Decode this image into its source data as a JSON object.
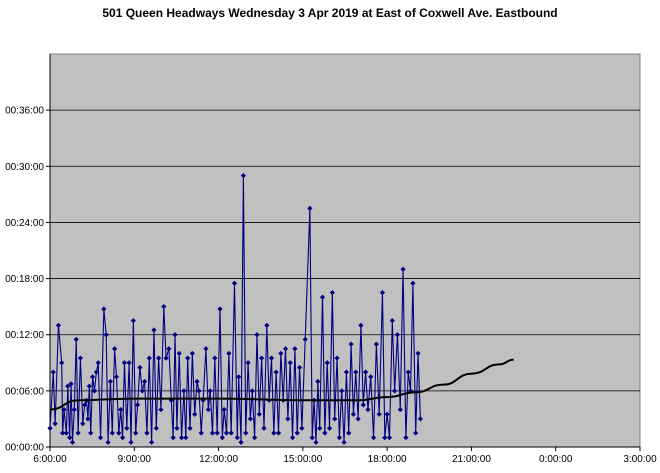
{
  "chart_data": {
    "type": "line",
    "title": "501 Queen Headways Wednesday 3 Apr 2019 at East of Coxwell Ave. Eastbound",
    "xlabel": "",
    "ylabel": "",
    "xlim": [
      "6:00:00",
      "3:00:00"
    ],
    "ylim": [
      "00:00:00",
      "00:42:00"
    ],
    "x_ticks": [
      "6:00:00",
      "9:00:00",
      "12:00:00",
      "15:00:00",
      "18:00:00",
      "21:00:00",
      "0:00:00",
      "3:00:00"
    ],
    "y_ticks": [
      "00:00:00",
      "00:06:00",
      "00:12:00",
      "00:18:00",
      "00:24:00",
      "00:30:00",
      "00:36:00"
    ],
    "grid": "horizontal",
    "legend": "none",
    "colors": {
      "plot_background": "#c0c0c0",
      "series": "#000080",
      "trend": "#000000"
    },
    "series": [
      {
        "values": [
          [
            "6:00",
            "0:02:00"
          ],
          [
            "6:07",
            "0:08:00"
          ],
          [
            "6:11",
            "0:02:30"
          ],
          [
            "6:18",
            "0:13:00"
          ],
          [
            "6:25",
            "0:09:00"
          ],
          [
            "6:27",
            "0:01:30"
          ],
          [
            "6:30",
            "0:04:00"
          ],
          [
            "6:35",
            "0:01:30"
          ],
          [
            "6:38",
            "0:06:30"
          ],
          [
            "6:42",
            "0:01:00"
          ],
          [
            "6:45",
            "0:06:45"
          ],
          [
            "6:48",
            "0:00:30"
          ],
          [
            "6:52",
            "0:04:00"
          ],
          [
            "6:56",
            "0:11:30"
          ],
          [
            "7:00",
            "0:01:30"
          ],
          [
            "7:05",
            "0:09:30"
          ],
          [
            "7:10",
            "0:02:30"
          ],
          [
            "7:14",
            "0:04:30"
          ],
          [
            "7:18",
            "0:05:00"
          ],
          [
            "7:21",
            "0:03:00"
          ],
          [
            "7:24",
            "0:06:30"
          ],
          [
            "7:27",
            "0:01:30"
          ],
          [
            "7:31",
            "0:07:30"
          ],
          [
            "7:35",
            "0:06:00"
          ],
          [
            "7:39",
            "0:08:00"
          ],
          [
            "7:43",
            "0:09:00"
          ],
          [
            "7:48",
            "0:01:00"
          ],
          [
            "7:55",
            "0:14:45"
          ],
          [
            "8:00",
            "0:12:00"
          ],
          [
            "8:04",
            "0:00:30"
          ],
          [
            "8:09",
            "0:07:00"
          ],
          [
            "8:13",
            "0:01:30"
          ],
          [
            "8:18",
            "0:10:30"
          ],
          [
            "8:22",
            "0:07:30"
          ],
          [
            "8:27",
            "0:01:30"
          ],
          [
            "8:31",
            "0:04:00"
          ],
          [
            "8:35",
            "0:01:00"
          ],
          [
            "8:39",
            "0:09:00"
          ],
          [
            "8:44",
            "0:02:00"
          ],
          [
            "8:49",
            "0:09:00"
          ],
          [
            "8:53",
            "0:00:30"
          ],
          [
            "8:58",
            "0:13:30"
          ],
          [
            "9:03",
            "0:01:30"
          ],
          [
            "9:07",
            "0:04:30"
          ],
          [
            "9:12",
            "0:08:30"
          ],
          [
            "9:17",
            "0:06:00"
          ],
          [
            "9:22",
            "0:07:00"
          ],
          [
            "9:27",
            "0:01:30"
          ],
          [
            "9:32",
            "0:09:30"
          ],
          [
            "9:37",
            "0:00:30"
          ],
          [
            "9:42",
            "0:12:30"
          ],
          [
            "9:47",
            "0:02:00"
          ],
          [
            "9:52",
            "0:09:30"
          ],
          [
            "9:57",
            "0:04:00"
          ],
          [
            "10:03",
            "0:15:00"
          ],
          [
            "10:08",
            "0:09:30"
          ],
          [
            "10:14",
            "0:10:30"
          ],
          [
            "10:19",
            "0:05:00"
          ],
          [
            "10:23",
            "0:01:00"
          ],
          [
            "10:27",
            "0:12:00"
          ],
          [
            "10:31",
            "0:02:00"
          ],
          [
            "10:36",
            "0:10:00"
          ],
          [
            "10:41",
            "0:01:00"
          ],
          [
            "10:46",
            "0:06:00"
          ],
          [
            "10:50",
            "0:01:00"
          ],
          [
            "10:54",
            "0:09:30"
          ],
          [
            "10:59",
            "0:02:00"
          ],
          [
            "11:04",
            "0:10:00"
          ],
          [
            "11:09",
            "0:03:30"
          ],
          [
            "11:14",
            "0:07:00"
          ],
          [
            "11:18",
            "0:06:00"
          ],
          [
            "11:23",
            "0:01:30"
          ],
          [
            "11:27",
            "0:05:00"
          ],
          [
            "11:33",
            "0:10:30"
          ],
          [
            "11:38",
            "0:04:00"
          ],
          [
            "11:42",
            "0:06:00"
          ],
          [
            "11:47",
            "0:01:30"
          ],
          [
            "11:52",
            "0:09:30"
          ],
          [
            "11:57",
            "0:01:30"
          ],
          [
            "12:03",
            "0:14:45"
          ],
          [
            "12:08",
            "0:01:00"
          ],
          [
            "12:12",
            "0:04:00"
          ],
          [
            "12:17",
            "0:01:30"
          ],
          [
            "12:22",
            "0:10:00"
          ],
          [
            "12:27",
            "0:01:30"
          ],
          [
            "12:34",
            "0:17:30"
          ],
          [
            "12:40",
            "0:01:00"
          ],
          [
            "12:43",
            "0:07:30"
          ],
          [
            "12:48",
            "0:00:30"
          ],
          [
            "12:53",
            "0:29:00"
          ],
          [
            "12:58",
            "0:01:30"
          ],
          [
            "13:03",
            "0:09:00"
          ],
          [
            "13:08",
            "0:03:00"
          ],
          [
            "13:12",
            "0:06:00"
          ],
          [
            "13:17",
            "0:01:00"
          ],
          [
            "13:22",
            "0:12:00"
          ],
          [
            "13:27",
            "0:03:30"
          ],
          [
            "13:32",
            "0:09:30"
          ],
          [
            "13:37",
            "0:02:00"
          ],
          [
            "13:43",
            "0:13:00"
          ],
          [
            "13:48",
            "0:05:00"
          ],
          [
            "13:53",
            "0:09:30"
          ],
          [
            "13:58",
            "0:01:30"
          ],
          [
            "14:03",
            "0:08:00"
          ],
          [
            "14:08",
            "0:01:30"
          ],
          [
            "14:13",
            "0:10:00"
          ],
          [
            "14:18",
            "0:05:00"
          ],
          [
            "14:23",
            "0:10:30"
          ],
          [
            "14:28",
            "0:03:00"
          ],
          [
            "14:33",
            "0:09:00"
          ],
          [
            "14:38",
            "0:01:00"
          ],
          [
            "14:43",
            "0:10:30"
          ],
          [
            "14:48",
            "0:01:30"
          ],
          [
            "14:53",
            "0:08:30"
          ],
          [
            "14:58",
            "0:02:00"
          ],
          [
            "15:05",
            "0:11:30"
          ],
          [
            "15:15",
            "0:25:30"
          ],
          [
            "15:20",
            "0:01:00"
          ],
          [
            "15:24",
            "0:05:00"
          ],
          [
            "15:28",
            "0:00:30"
          ],
          [
            "15:32",
            "0:07:00"
          ],
          [
            "15:36",
            "0:02:00"
          ],
          [
            "15:42",
            "0:16:00"
          ],
          [
            "15:47",
            "0:01:30"
          ],
          [
            "15:52",
            "0:09:00"
          ],
          [
            "15:57",
            "0:02:00"
          ],
          [
            "16:03",
            "0:16:30"
          ],
          [
            "16:08",
            "0:03:00"
          ],
          [
            "16:13",
            "0:09:30"
          ],
          [
            "16:18",
            "0:01:00"
          ],
          [
            "16:23",
            "0:06:00"
          ],
          [
            "16:28",
            "0:00:30"
          ],
          [
            "16:33",
            "0:08:00"
          ],
          [
            "16:38",
            "0:01:30"
          ],
          [
            "16:43",
            "0:11:00"
          ],
          [
            "16:48",
            "0:03:30"
          ],
          [
            "16:53",
            "0:08:00"
          ],
          [
            "16:58",
            "0:03:00"
          ],
          [
            "17:04",
            "0:13:00"
          ],
          [
            "17:09",
            "0:04:30"
          ],
          [
            "17:14",
            "0:08:00"
          ],
          [
            "17:19",
            "0:04:00"
          ],
          [
            "17:25",
            "0:07:30"
          ],
          [
            "17:31",
            "0:01:00"
          ],
          [
            "17:37",
            "0:11:00"
          ],
          [
            "17:43",
            "0:03:30"
          ],
          [
            "17:50",
            "0:16:30"
          ],
          [
            "17:55",
            "0:01:00"
          ],
          [
            "18:00",
            "0:03:30"
          ],
          [
            "18:05",
            "0:01:00"
          ],
          [
            "18:11",
            "0:13:30"
          ],
          [
            "18:16",
            "0:06:00"
          ],
          [
            "18:22",
            "0:12:00"
          ],
          [
            "18:28",
            "0:04:00"
          ],
          [
            "18:34",
            "0:19:00"
          ],
          [
            "18:40",
            "0:01:00"
          ],
          [
            "18:45",
            "0:08:00"
          ],
          [
            "18:50",
            "0:06:00"
          ],
          [
            "18:55",
            "0:17:30"
          ],
          [
            "19:01",
            "0:01:30"
          ],
          [
            "19:06",
            "0:10:00"
          ],
          [
            "19:11",
            "0:03:00"
          ]
        ]
      },
      {
        "values": [
          [
            "6:00",
            "0:04:00"
          ],
          [
            "7:00",
            "0:05:00"
          ],
          [
            "9:00",
            "0:05:10"
          ],
          [
            "12:00",
            "0:05:10"
          ],
          [
            "15:00",
            "0:05:00"
          ],
          [
            "17:00",
            "0:05:00"
          ],
          [
            "18:00",
            "0:05:20"
          ],
          [
            "19:00",
            "0:05:50"
          ],
          [
            "20:00",
            "0:06:40"
          ],
          [
            "21:00",
            "0:07:50"
          ],
          [
            "22:00",
            "0:08:50"
          ],
          [
            "22:30",
            "0:09:20"
          ]
        ]
      }
    ]
  }
}
